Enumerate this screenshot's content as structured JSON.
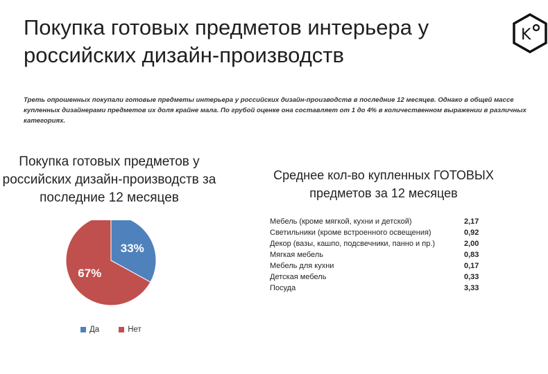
{
  "slide": {
    "title": "Покупка готовых предметов интерьера у российских дизайн-производств",
    "logo_text": "K°",
    "intro": "Треть опрошенных покупали готовые предметы интерьера у российских дизайн-производств в последние 12 месяцев. Однако в общей массе купленных дизайнерами предметов их доля крайне мала. По грубой оценке она составляет от 1 до 4% в количественном выражении в различных категориях."
  },
  "colors": {
    "yes": "#4f81bd",
    "no": "#c0504d"
  },
  "chart_data": [
    {
      "type": "pie",
      "title": "Покупка готовых предметов у российских дизайн-производств за последние 12 месяцев",
      "categories": [
        "Да",
        "Нет"
      ],
      "values": [
        33,
        67
      ],
      "labels": [
        "33%",
        "67%"
      ],
      "legend": "bottom"
    },
    {
      "type": "table",
      "title": "Среднее кол-во купленных ГОТОВЫХ предметов за 12 месяцев",
      "rows": [
        {
          "label": "Мебель (кроме мягкой, кухни и детской)",
          "value": "2,17"
        },
        {
          "label": "Светильники (кроме встроенного освещения)",
          "value": "0,92"
        },
        {
          "label": "Декор (вазы, кашпо, подсвечники, панно и пр.)",
          "value": "2,00"
        },
        {
          "label": "Мягкая мебель",
          "value": "0,83"
        },
        {
          "label": "Мебель для кухни",
          "value": "0,17"
        },
        {
          "label": "Детская мебель",
          "value": "0,33"
        },
        {
          "label": "Посуда",
          "value": "3,33"
        }
      ]
    }
  ]
}
